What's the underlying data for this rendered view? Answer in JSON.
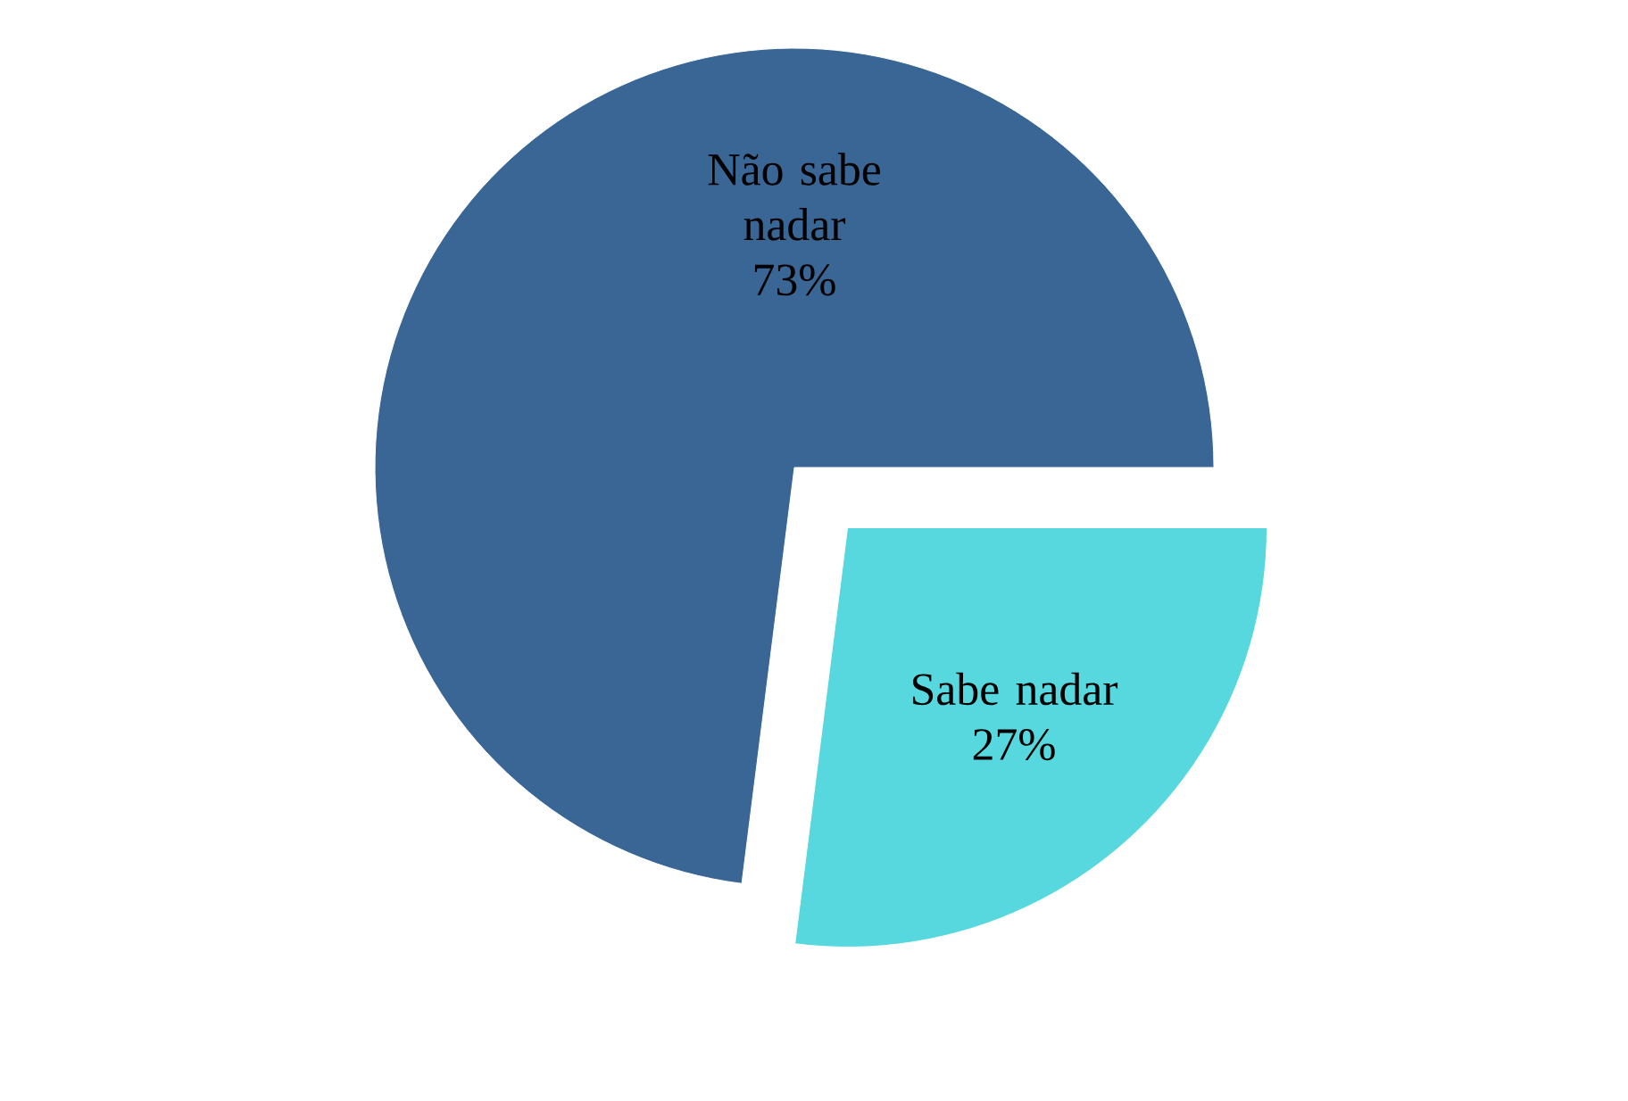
{
  "chart_data": {
    "type": "pie",
    "categories": [
      "Não sabe nadar",
      "Sabe nadar"
    ],
    "values": [
      73,
      27
    ],
    "value_labels": [
      "73%",
      "27%"
    ],
    "colors": [
      "#3a6696",
      "#56d8de"
    ]
  }
}
